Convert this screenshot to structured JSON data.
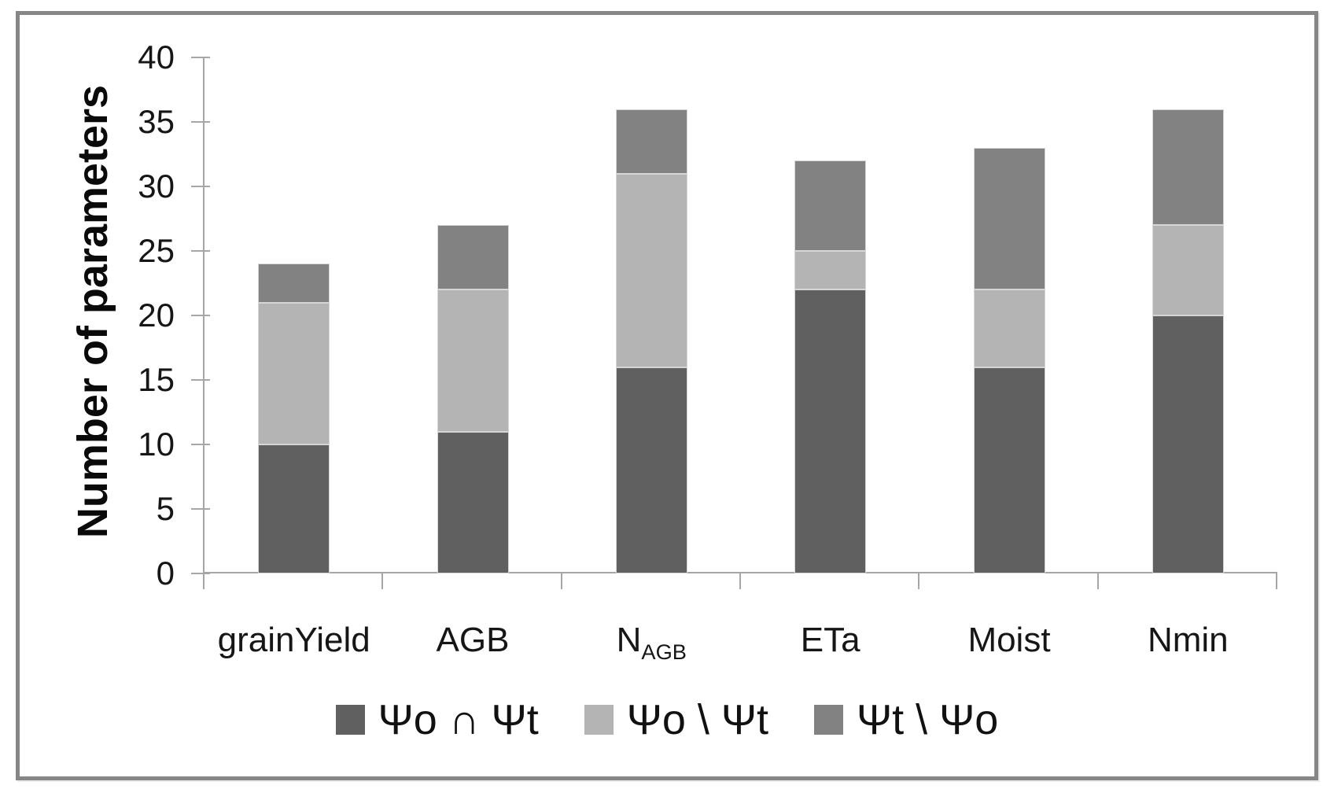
{
  "figure": {
    "border_color": "#868686",
    "background": "#ffffff"
  },
  "chart_data": {
    "type": "bar",
    "stacked": true,
    "title": "",
    "xlabel": "",
    "ylabel": "Number of parameters",
    "ylim": [
      0,
      40
    ],
    "ytick_step": 5,
    "yticks": [
      0,
      5,
      10,
      15,
      20,
      25,
      30,
      35,
      40
    ],
    "grid": false,
    "legend_position": "bottom",
    "axis_color": "#a6a6a6",
    "text_color": "#161616",
    "categories": [
      {
        "label": "grainYield"
      },
      {
        "label": "AGB"
      },
      {
        "label": "N",
        "sub": "AGB"
      },
      {
        "label": "ETa"
      },
      {
        "label": "Moist"
      },
      {
        "label": "Nmin"
      }
    ],
    "series": [
      {
        "name": "Ψo ∩ Ψt",
        "color": "#606060",
        "values": [
          10,
          11,
          16,
          22,
          16,
          20
        ]
      },
      {
        "name": "Ψo \\ Ψt",
        "color": "#b4b4b4",
        "values": [
          11,
          11,
          15,
          3,
          6,
          7
        ]
      },
      {
        "name": "Ψt \\ Ψo",
        "color": "#828282",
        "values": [
          3,
          5,
          5,
          7,
          11,
          9
        ]
      }
    ],
    "totals": [
      24,
      27,
      36,
      32,
      33,
      36
    ]
  }
}
